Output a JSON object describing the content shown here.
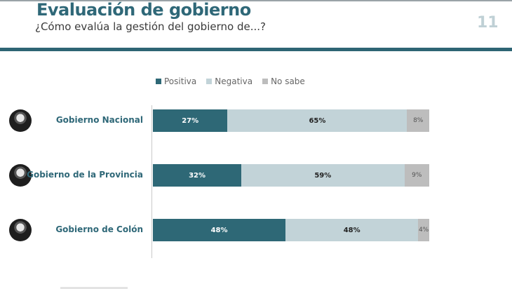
{
  "header": {
    "title": "Evaluación de gobierno",
    "subtitle": "¿Cómo evalúa la gestión del gobierno de...?",
    "page_number": "11"
  },
  "colors": {
    "positiva": "#2e6876",
    "negativa": "#c2d3d8",
    "no_sabe": "#bdbdbd",
    "brand": "#2f6878"
  },
  "rows": [
    {
      "label": "Gobierno Nacional",
      "icon": "avatar-photo-icon"
    },
    {
      "label": "Gobierno de la Provincia",
      "icon": "avatar-photo-icon"
    },
    {
      "label": "Gobierno de Colón",
      "icon": "avatar-photo-icon"
    }
  ],
  "chart_data": {
    "type": "bar",
    "orientation": "horizontal",
    "stacked": true,
    "percent_stacked": true,
    "legend_position": "top",
    "categories": [
      "Gobierno Nacional",
      "Gobierno de la Provincia",
      "Gobierno de Colón"
    ],
    "series": [
      {
        "name": "Positiva",
        "values": [
          27,
          32,
          48
        ],
        "labels": [
          "27%",
          "32%",
          "48%"
        ]
      },
      {
        "name": "Negativa",
        "values": [
          65,
          59,
          48
        ],
        "labels": [
          "65%",
          "59%",
          "48%"
        ]
      },
      {
        "name": "No sabe",
        "values": [
          8,
          9,
          4
        ],
        "labels": [
          "8%",
          "9%",
          "4%"
        ]
      }
    ]
  }
}
